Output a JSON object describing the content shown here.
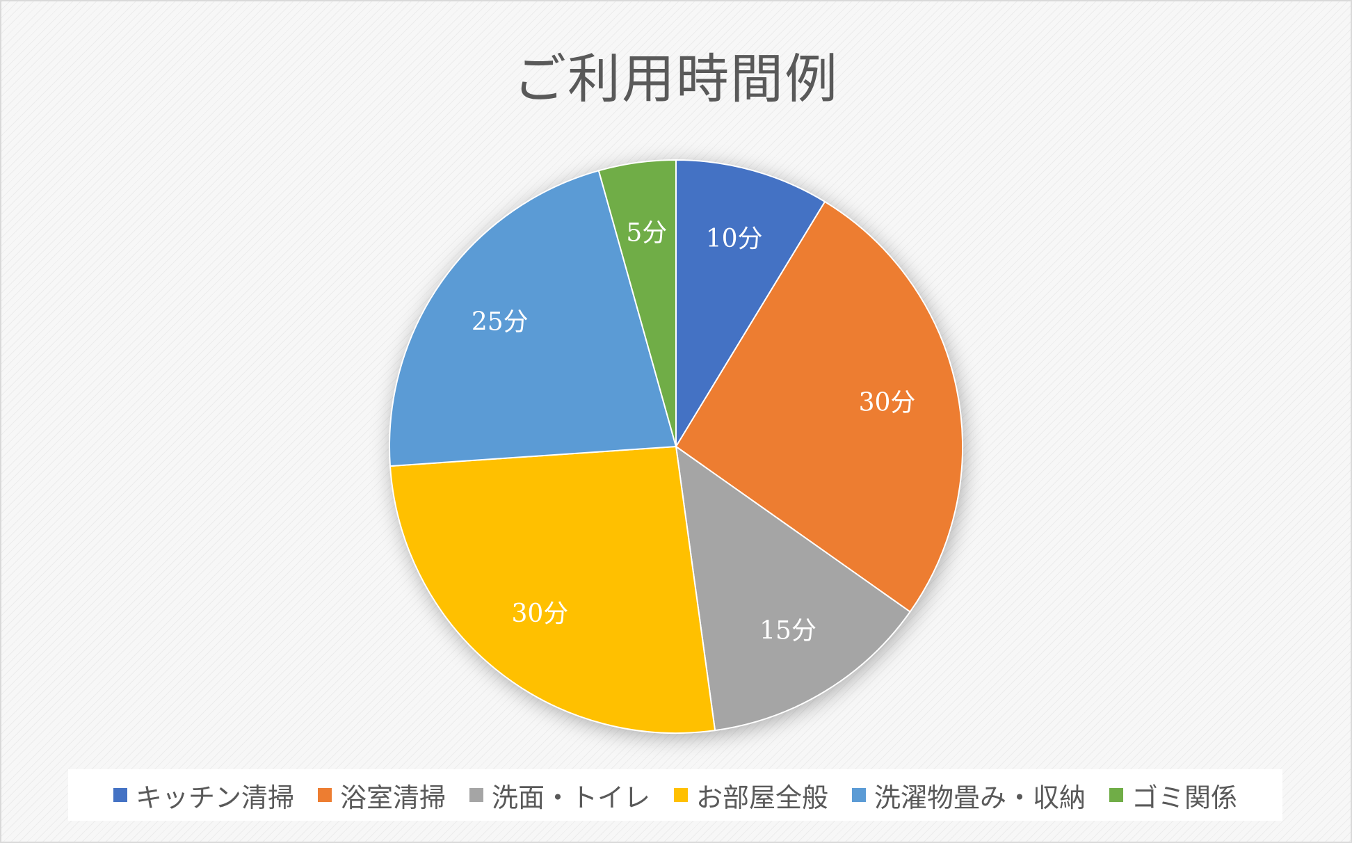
{
  "chart_data": {
    "type": "pie",
    "title": "ご利用時間例",
    "categories": [
      "キッチン清掃",
      "浴室清掃",
      "洗面・トイレ",
      "お部屋全般",
      "洗濯物畳み・収納",
      "ゴミ関係"
    ],
    "values": [
      10,
      30,
      15,
      30,
      25,
      5
    ],
    "data_labels": [
      "10分",
      "30分",
      "15分",
      "30分",
      "25分",
      "5分"
    ],
    "colors": [
      "#4472C4",
      "#ED7D31",
      "#A5A5A5",
      "#FFC000",
      "#5B9BD5",
      "#70AD47"
    ],
    "legend_position": "bottom"
  }
}
